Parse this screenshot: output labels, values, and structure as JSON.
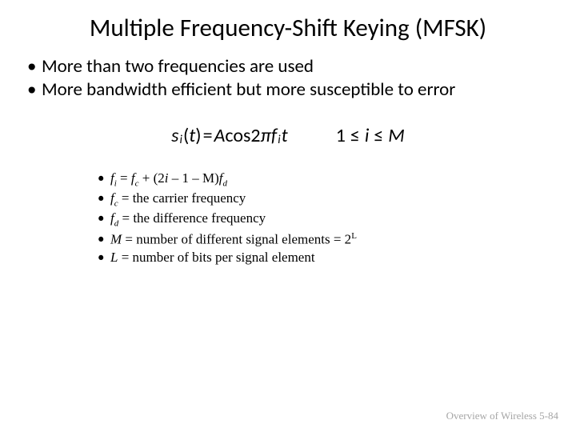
{
  "title": "Multiple Frequency-Shift Keying (MFSK)",
  "bullets": {
    "main1": "More than two frequencies are used",
    "main2": "More bandwidth efficient but more susceptible to error"
  },
  "formula": {
    "lhs_var": "s",
    "lhs_sub": "i",
    "lhs_arg": "t",
    "eq": "=",
    "A": "A",
    "cos": "cos",
    "two": "2",
    "pi": "π",
    "f": "f",
    "f_sub": "i",
    "t": "t"
  },
  "range": {
    "one": "1",
    "le1": "≤",
    "i": "i",
    "le2": "≤",
    "M": "M"
  },
  "defs": {
    "d1_lhs_f": "f",
    "d1_lhs_sub": "i",
    "d1_eq": " = ",
    "d1_fc_f": "f",
    "d1_fc_sub": "c",
    "d1_plus": " + (2",
    "d1_i": "i",
    "d1_mid": " – 1 – M)",
    "d1_fd_f": "f",
    "d1_fd_sub": "d",
    "d2_f": "f",
    "d2_sub": "c",
    "d2_txt": " = the carrier frequency",
    "d3_f": "f",
    "d3_sub": "d",
    "d3_txt": " = the difference frequency",
    "d4_M": "M",
    "d4_txt": " = number of different signal elements = 2",
    "d4_sup": "L",
    "d5_L": "L",
    "d5_txt": " = number of bits per signal element"
  },
  "footer": "Overview of Wireless 5-84",
  "colors": {
    "text": "#000000",
    "bg": "#ffffff",
    "footer": "#a6a6a6"
  }
}
